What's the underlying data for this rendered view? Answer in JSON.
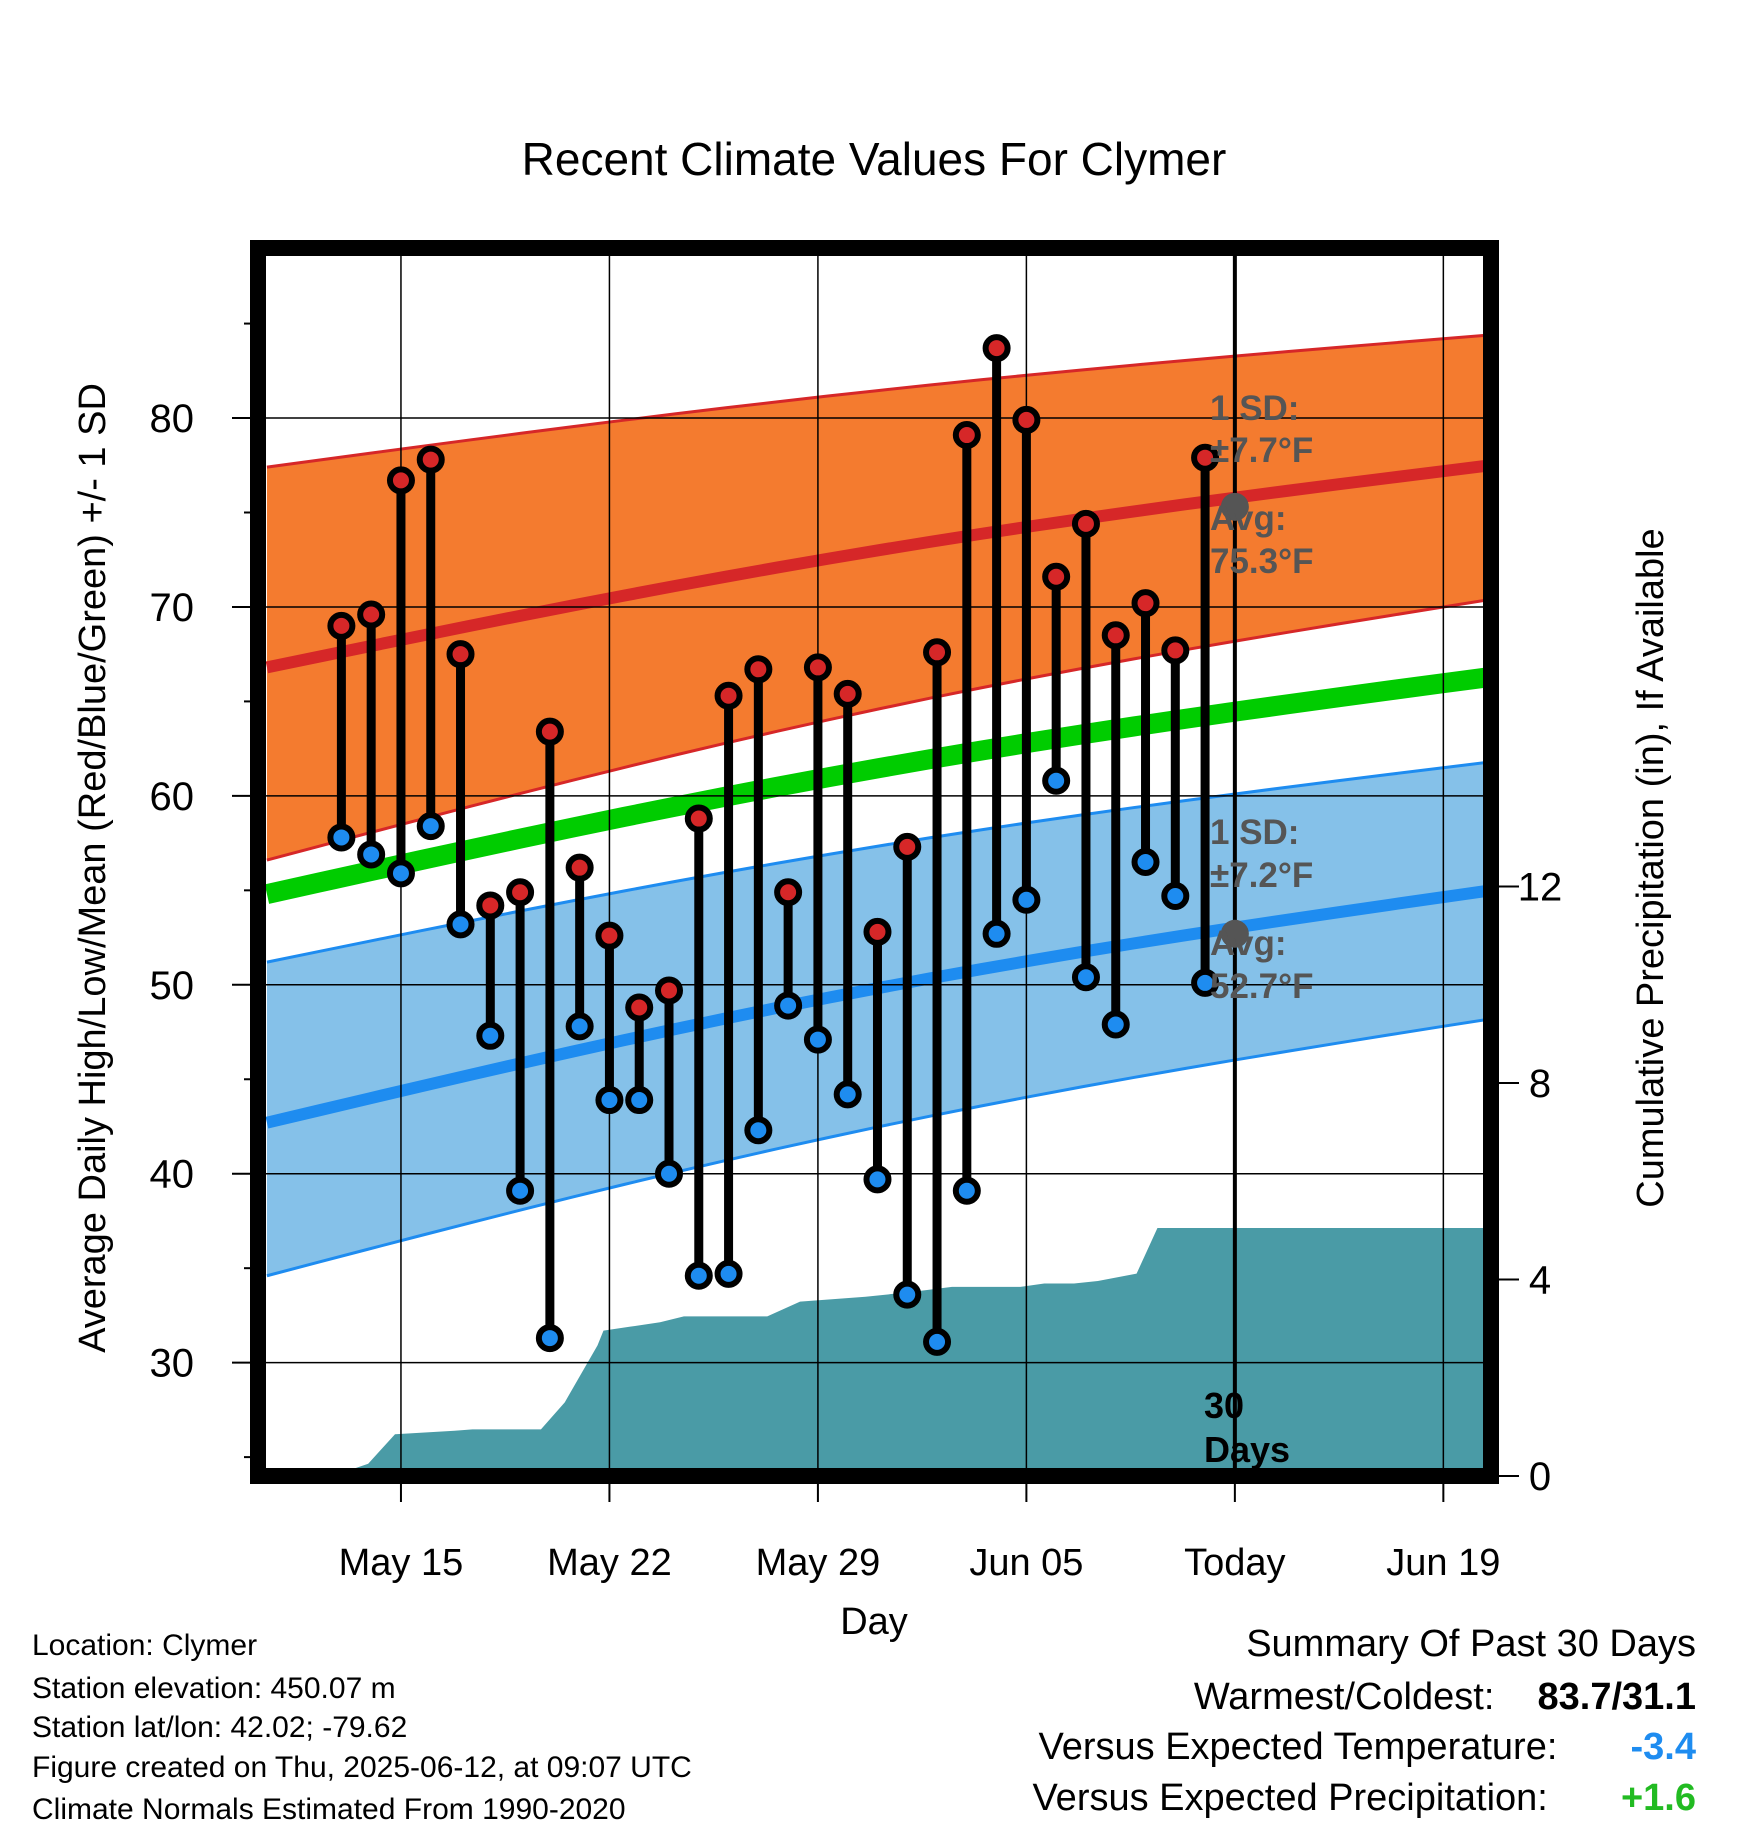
{
  "chart_data": {
    "type": "line",
    "title": "Recent Climate Values For Clymer",
    "xlabel": "Day",
    "ylabel": "Average Daily High/Low/Mean (Red/Blue/Green) +/- 1 SD",
    "y2label": "Cumulative Precipitation (in), If Available",
    "x_ticks": [
      "May 15",
      "May 22",
      "May 29",
      "Jun 05",
      "Today",
      "Jun 19"
    ],
    "x_tick_days": [
      15,
      22,
      29,
      36,
      43,
      50
    ],
    "xlim": [
      10.2,
      51.6
    ],
    "ylim": [
      24,
      89
    ],
    "y_ticks": [
      30,
      40,
      50,
      60,
      70,
      80
    ],
    "y2lim": [
      0,
      25
    ],
    "y2_ticks": [
      0,
      4,
      8,
      12
    ],
    "days_label": "30 Days",
    "daily_high": [
      69.0,
      69.6,
      76.7,
      77.8,
      67.5,
      54.2,
      54.9,
      63.4,
      56.2,
      52.6,
      48.8,
      49.7,
      58.8,
      65.3,
      66.7,
      54.9,
      66.8,
      65.4,
      52.8,
      57.3,
      67.6,
      79.1,
      83.7,
      79.9,
      71.6,
      74.4,
      68.5,
      70.2,
      67.7,
      77.9
    ],
    "daily_low": [
      57.8,
      56.9,
      55.9,
      58.4,
      53.2,
      47.3,
      39.1,
      31.3,
      47.8,
      43.9,
      43.9,
      40.0,
      34.6,
      34.7,
      42.3,
      48.9,
      47.1,
      44.2,
      39.7,
      33.6,
      31.1,
      39.1,
      52.7,
      54.5,
      60.8,
      50.4,
      47.9,
      56.5,
      54.7,
      50.1
    ],
    "normal_days": [
      10.5,
      51.6
    ],
    "normal_high": [
      66.8,
      77.5
    ],
    "normal_high_upper": [
      77.4,
      84.4
    ],
    "normal_high_lower": [
      56.6,
      70.4
    ],
    "normal_mean": [
      54.8,
      66.3
    ],
    "normal_low": [
      42.7,
      55.0
    ],
    "normal_low_upper": [
      51.2,
      61.8
    ],
    "normal_low_lower": [
      34.6,
      48.2
    ],
    "today_avg_high": 75.3,
    "today_avg_low": 52.7,
    "precip_day": [
      12.7,
      13.9,
      14.8,
      16.8,
      17.4,
      19.7,
      20.5,
      21.6,
      21.8,
      22.7,
      23.7,
      24.5,
      26.6,
      27.3,
      28.4,
      30.6,
      32.2,
      33.5,
      35.4,
      35.8,
      36.6,
      37.6,
      38.4,
      39.7,
      40.4,
      51.6
    ],
    "precip": [
      0,
      0.25,
      0.85,
      0.92,
      0.95,
      0.95,
      1.5,
      2.66,
      2.96,
      3.04,
      3.13,
      3.25,
      3.25,
      3.25,
      3.55,
      3.65,
      3.75,
      3.85,
      3.85,
      3.85,
      3.92,
      3.92,
      3.97,
      4.12,
      5.05,
      5.05
    ],
    "colors": {
      "high": "#d62728",
      "high_band": "#f47b2f",
      "mean": "#00cc00",
      "low": "#1e8cf0",
      "low_band": "#85c1e9",
      "precip": "#4a9ba6",
      "annotation": "#555555",
      "below_expected": "#1e8cf0",
      "above_expected": "#22bb22"
    }
  },
  "annotations": {
    "high_sd_label": "1 SD:",
    "high_sd_value": "±7.7°F",
    "high_avg_label": "Avg:",
    "high_avg_value": "75.3°F",
    "low_sd_label": "1 SD:",
    "low_sd_value": "±7.2°F",
    "low_avg_label": "Avg:",
    "low_avg_value": "52.7°F",
    "days_count": "30",
    "days_word": "Days"
  },
  "info": {
    "location": "Location: Clymer",
    "elevation": "Station elevation: 450.07 m",
    "latlon": "Station lat/lon: 42.02; -79.62",
    "created": "Figure created on Thu, 2025-06-12, at 09:07 UTC",
    "normals": "Climate Normals Estimated From 1990-2020"
  },
  "summary": {
    "heading": "Summary Of Past 30 Days",
    "warm_cold_label": "Warmest/Coldest:",
    "warm_cold_value": "83.7/31.1",
    "temp_label": "Versus Expected Temperature:",
    "temp_value": "-3.4",
    "precip_label": "Versus Expected Precipitation:",
    "precip_value": "+1.6"
  }
}
